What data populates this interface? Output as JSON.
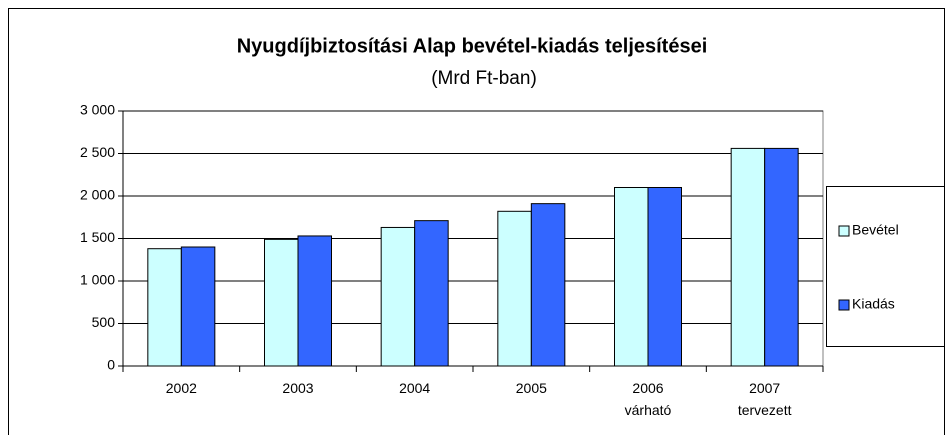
{
  "chart_data": {
    "type": "bar",
    "title": "Nyugdíjbiztosítási Alap bevétel-kiadás teljesítései",
    "subtitle": "(Mrd Ft-ban)",
    "categories": [
      "2002",
      "2003",
      "2004",
      "2005",
      "2006\nvárható",
      "2007\ntervezett"
    ],
    "series": [
      {
        "name": "Bevétel",
        "color": "#ccffff",
        "values": [
          1380,
          1490,
          1630,
          1820,
          2100,
          2560
        ]
      },
      {
        "name": "Kiadás",
        "color": "#3366ff",
        "values": [
          1400,
          1530,
          1710,
          1910,
          2100,
          2560
        ]
      }
    ],
    "ylim": [
      0,
      3000
    ],
    "yticks": [
      0,
      {
        "value": 500,
        "label": "500"
      },
      {
        "value": 1000,
        "label": "1 000"
      },
      {
        "value": 1500,
        "label": "1 500"
      },
      {
        "value": 2000,
        "label": "2 000"
      },
      {
        "value": 2500,
        "label": "2 500"
      },
      {
        "value": 3000,
        "label": "3 000"
      }
    ],
    "grid": true,
    "legend": "right"
  }
}
